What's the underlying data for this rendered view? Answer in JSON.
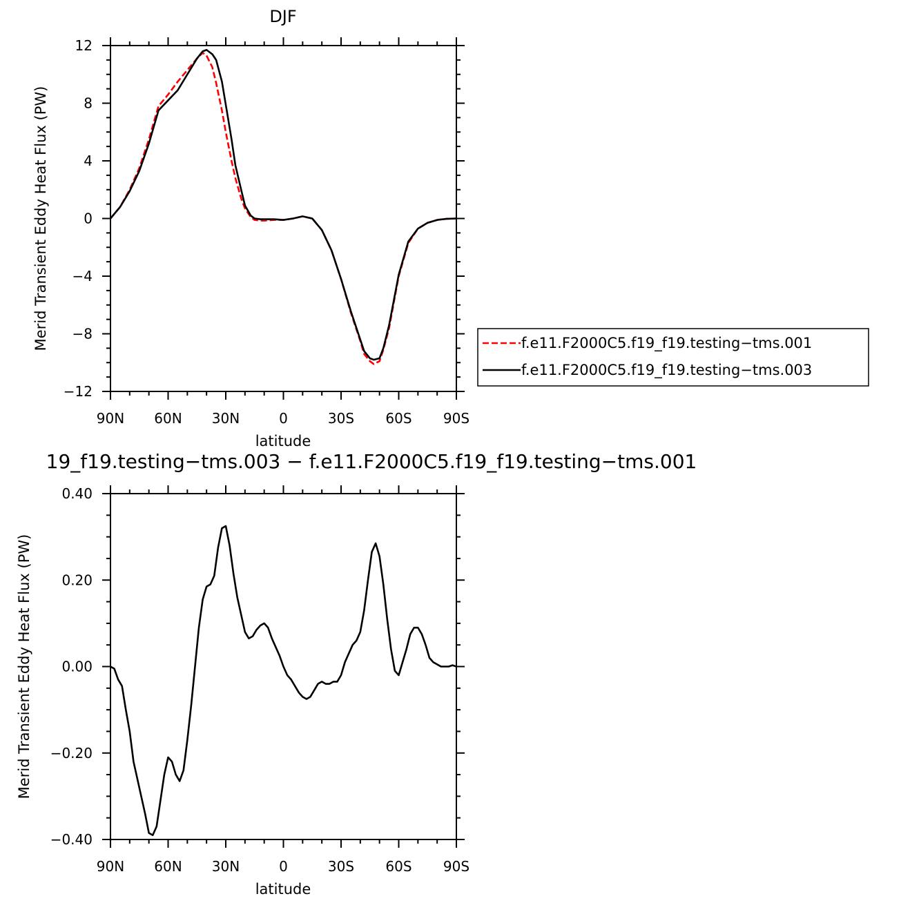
{
  "chart_data": [
    {
      "type": "line",
      "title": "DJF",
      "xlabel": "latitude",
      "ylabel": "Merid Transient Eddy Heat Flux (PW)",
      "xlim": [
        90,
        -90
      ],
      "ylim": [
        -12,
        12
      ],
      "x_ticks": [
        90,
        60,
        30,
        0,
        -30,
        -60,
        -90
      ],
      "x_tick_labels": [
        "90N",
        "60N",
        "30N",
        "0",
        "30S",
        "60S",
        "90S"
      ],
      "y_ticks": [
        -12,
        -8,
        -4,
        0,
        4,
        8,
        12
      ],
      "y_tick_labels": [
        "−12",
        "−8",
        "−4",
        "0",
        "4",
        "8",
        "12"
      ],
      "legend_position": "right",
      "series": [
        {
          "name": "f.e11.F2000C5.f19_f19.testing−tms.001",
          "color": "#ff0000",
          "dash": "dashed",
          "x": [
            90,
            85,
            80,
            75,
            70,
            65,
            60,
            55,
            50,
            45,
            42,
            40,
            37,
            35,
            32,
            30,
            27,
            25,
            22,
            20,
            17,
            15,
            12,
            10,
            5,
            0,
            -5,
            -10,
            -15,
            -20,
            -25,
            -30,
            -35,
            -40,
            -42,
            -45,
            -47,
            -50,
            -52,
            -55,
            -60,
            -65,
            -70,
            -75,
            -80,
            -85,
            -90
          ],
          "y": [
            0,
            0.8,
            2.0,
            3.5,
            5.5,
            7.8,
            8.6,
            9.5,
            10.3,
            11.1,
            11.5,
            11.3,
            10.5,
            9.4,
            7.5,
            6.0,
            4.0,
            2.8,
            1.4,
            0.7,
            0.1,
            -0.1,
            -0.15,
            -0.15,
            -0.1,
            -0.1,
            0.0,
            0.15,
            0.0,
            -0.8,
            -2.2,
            -4.2,
            -6.5,
            -8.5,
            -9.4,
            -9.9,
            -10.1,
            -9.9,
            -9.1,
            -7.6,
            -4.0,
            -1.7,
            -0.7,
            -0.3,
            -0.1,
            -0.02,
            0
          ]
        },
        {
          "name": "f.e11.F2000C5.f19_f19.testing−tms.003",
          "color": "#000000",
          "dash": "solid",
          "x": [
            90,
            85,
            80,
            75,
            70,
            65,
            60,
            55,
            50,
            45,
            42,
            40,
            37,
            35,
            32,
            30,
            27,
            25,
            22,
            20,
            17,
            15,
            12,
            10,
            5,
            0,
            -5,
            -10,
            -15,
            -20,
            -25,
            -30,
            -35,
            -40,
            -42,
            -45,
            -47,
            -50,
            -52,
            -55,
            -60,
            -65,
            -70,
            -75,
            -80,
            -85,
            -90
          ],
          "y": [
            0,
            0.8,
            1.9,
            3.3,
            5.2,
            7.5,
            8.2,
            8.9,
            10.0,
            11.1,
            11.6,
            11.7,
            11.4,
            11.0,
            9.5,
            7.9,
            5.5,
            3.7,
            2.0,
            0.9,
            0.2,
            0.0,
            -0.05,
            -0.05,
            -0.05,
            -0.1,
            0.0,
            0.15,
            0.0,
            -0.8,
            -2.2,
            -4.2,
            -6.4,
            -8.4,
            -9.2,
            -9.7,
            -9.8,
            -9.7,
            -9.0,
            -7.4,
            -3.9,
            -1.6,
            -0.7,
            -0.3,
            -0.1,
            -0.02,
            0
          ]
        }
      ]
    },
    {
      "type": "line",
      "title": "19_f19.testing−tms.003 − f.e11.F2000C5.f19_f19.testing−tms.001",
      "xlabel": "latitude",
      "ylabel": "Merid Transient Eddy Heat Flux (PW)",
      "xlim": [
        90,
        -90
      ],
      "ylim": [
        -0.4,
        0.4
      ],
      "x_ticks": [
        90,
        60,
        30,
        0,
        -30,
        -60,
        -90
      ],
      "x_tick_labels": [
        "90N",
        "60N",
        "30N",
        "0",
        "30S",
        "60S",
        "90S"
      ],
      "y_ticks": [
        -0.4,
        -0.2,
        0,
        0.2,
        0.4
      ],
      "y_tick_labels": [
        "−0.40",
        "−0.20",
        "0.00",
        "0.20",
        "0.40"
      ],
      "series": [
        {
          "color": "#000000",
          "dash": "solid",
          "x": [
            90,
            88,
            86,
            84,
            82,
            80,
            78,
            76,
            74,
            72,
            70,
            68,
            66,
            64,
            62,
            60,
            58,
            56,
            54,
            52,
            50,
            48,
            46,
            44,
            42,
            40,
            38,
            36,
            34,
            32,
            30,
            28,
            26,
            24,
            22,
            20,
            18,
            16,
            14,
            12,
            10,
            8,
            6,
            4,
            2,
            0,
            -2,
            -4,
            -6,
            -8,
            -10,
            -12,
            -14,
            -16,
            -18,
            -20,
            -22,
            -24,
            -26,
            -28,
            -30,
            -32,
            -34,
            -36,
            -38,
            -40,
            -42,
            -44,
            -46,
            -48,
            -50,
            -52,
            -54,
            -56,
            -58,
            -60,
            -62,
            -64,
            -66,
            -68,
            -70,
            -72,
            -74,
            -76,
            -78,
            -80,
            -82,
            -84,
            -86,
            -88,
            -90
          ],
          "y": [
            0,
            -0.005,
            -0.03,
            -0.045,
            -0.1,
            -0.15,
            -0.22,
            -0.26,
            -0.3,
            -0.34,
            -0.385,
            -0.39,
            -0.37,
            -0.31,
            -0.25,
            -0.21,
            -0.22,
            -0.25,
            -0.265,
            -0.24,
            -0.17,
            -0.09,
            0.0,
            0.09,
            0.155,
            0.185,
            0.19,
            0.21,
            0.275,
            0.32,
            0.325,
            0.28,
            0.215,
            0.16,
            0.12,
            0.08,
            0.065,
            0.07,
            0.085,
            0.095,
            0.1,
            0.09,
            0.065,
            0.045,
            0.025,
            0.0,
            -0.02,
            -0.03,
            -0.045,
            -0.06,
            -0.07,
            -0.075,
            -0.07,
            -0.055,
            -0.04,
            -0.035,
            -0.04,
            -0.04,
            -0.035,
            -0.035,
            -0.02,
            0.01,
            0.03,
            0.05,
            0.06,
            0.08,
            0.13,
            0.2,
            0.265,
            0.285,
            0.255,
            0.19,
            0.11,
            0.04,
            -0.01,
            -0.02,
            0.01,
            0.04,
            0.075,
            0.09,
            0.09,
            0.075,
            0.05,
            0.02,
            0.01,
            0.005,
            0.0,
            0.0,
            0.0,
            0.003,
            0.0
          ]
        }
      ]
    }
  ]
}
